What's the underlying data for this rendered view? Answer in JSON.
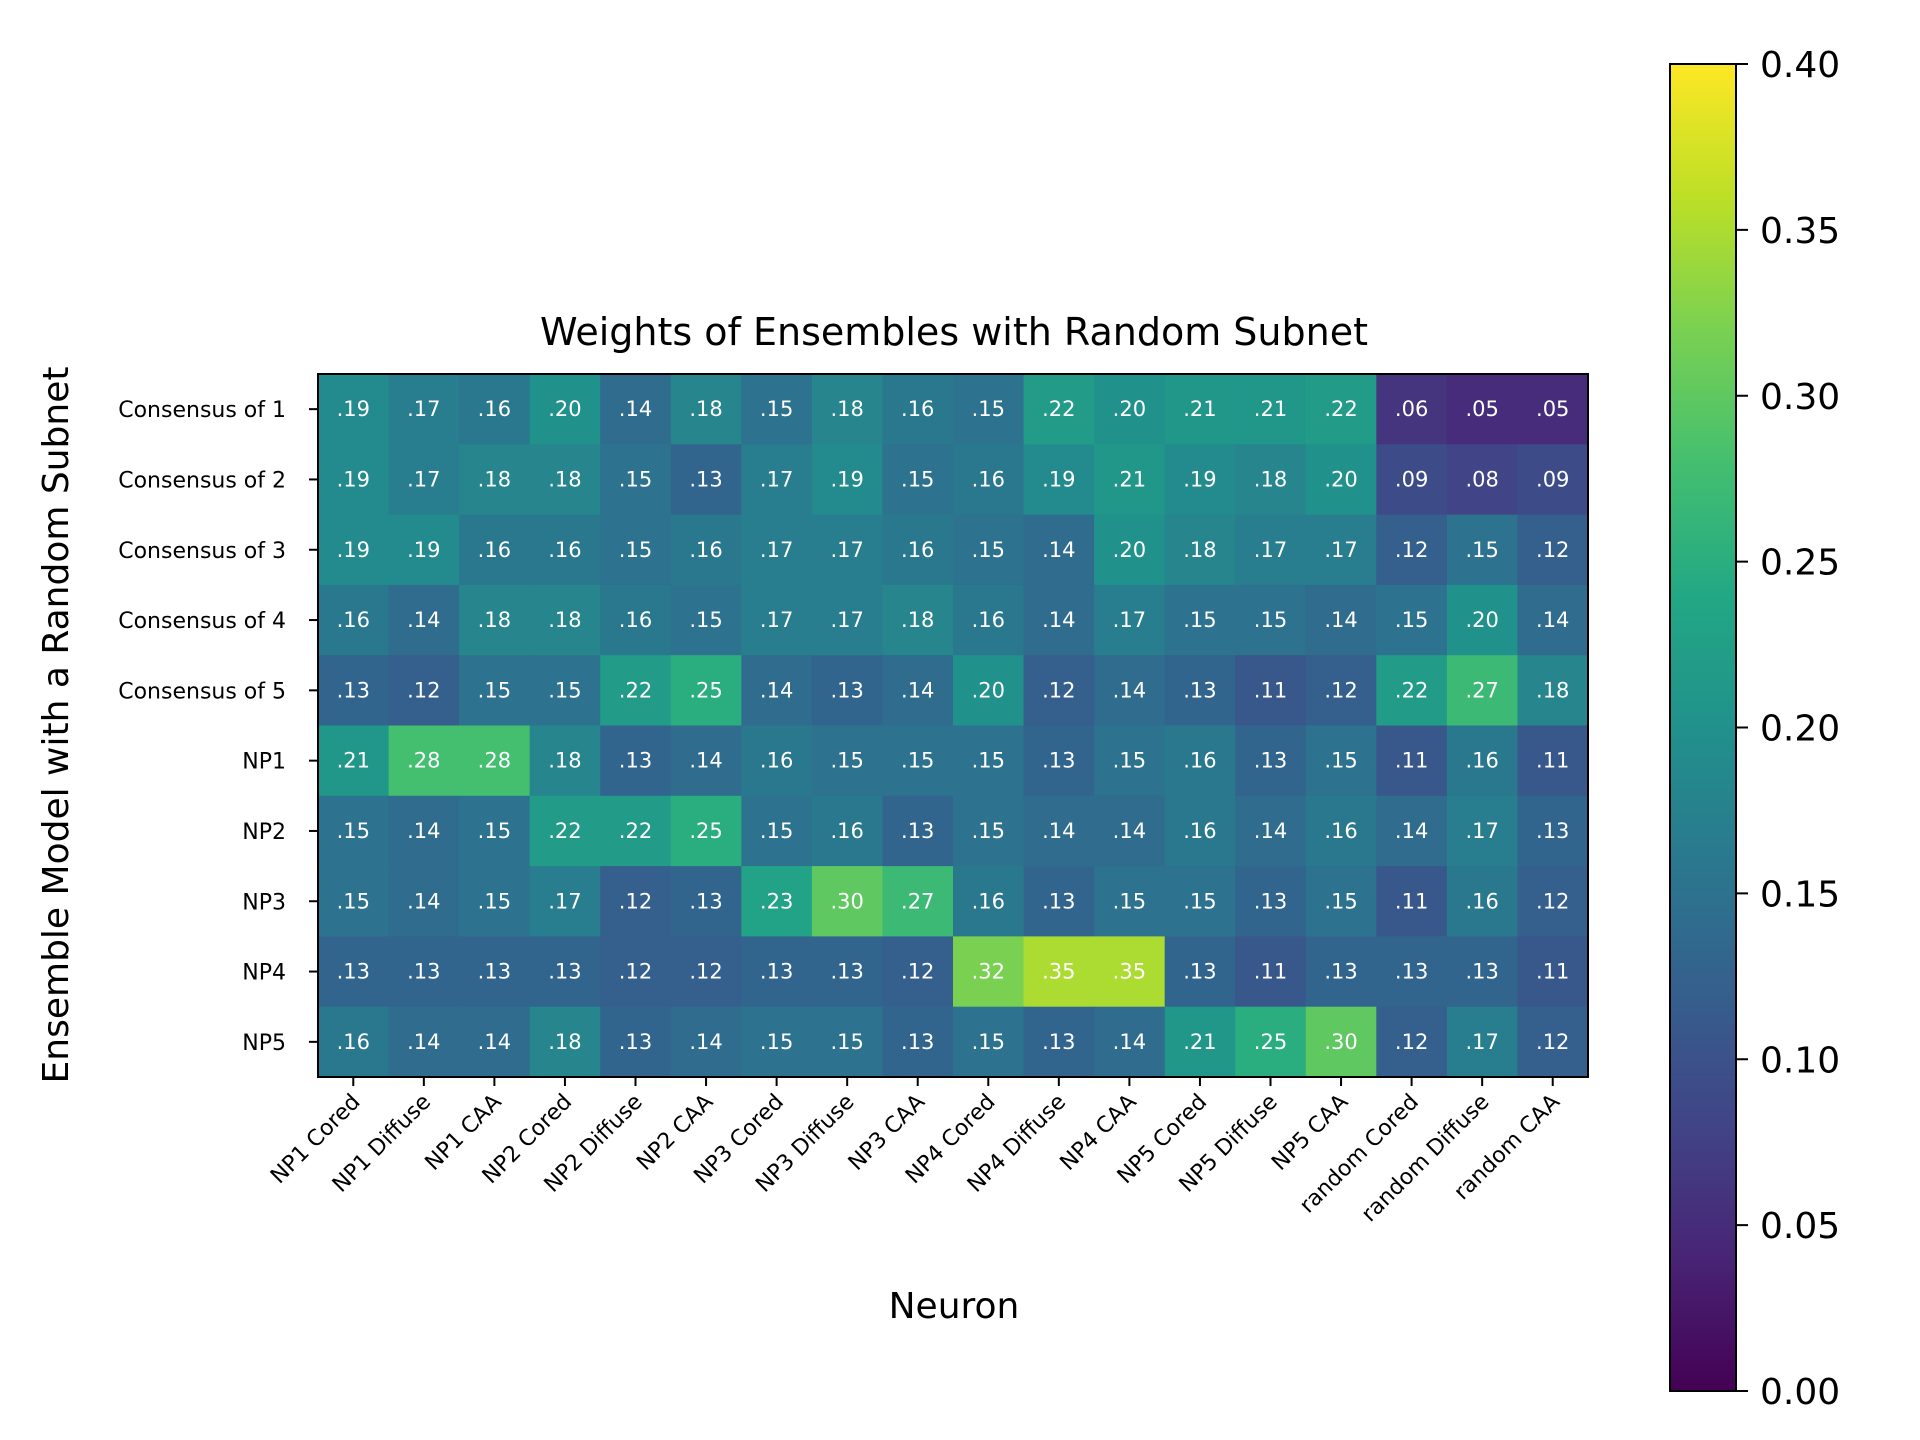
{
  "chart_data": {
    "type": "heatmap",
    "title": "Weights of Ensembles with Random Subnet",
    "xlabel": "Neuron",
    "ylabel": "Ensemble Model with a Random Subnet",
    "x_categories": [
      "NP1 Cored",
      "NP1 Diffuse",
      "NP1 CAA",
      "NP2 Cored",
      "NP2 Diffuse",
      "NP2 CAA",
      "NP3 Cored",
      "NP3 Diffuse",
      "NP3 CAA",
      "NP4 Cored",
      "NP4 Diffuse",
      "NP4 CAA",
      "NP5 Cored",
      "NP5 Diffuse",
      "NP5 CAA",
      "random Cored",
      "random Diffuse",
      "random CAA"
    ],
    "y_categories": [
      "Consensus of 1",
      "Consensus of 2",
      "Consensus of 3",
      "Consensus of 4",
      "Consensus of 5",
      "NP1",
      "NP2",
      "NP3",
      "NP4",
      "NP5"
    ],
    "values": [
      [
        0.19,
        0.17,
        0.16,
        0.2,
        0.14,
        0.18,
        0.15,
        0.18,
        0.16,
        0.15,
        0.22,
        0.2,
        0.21,
        0.21,
        0.22,
        0.06,
        0.05,
        0.05
      ],
      [
        0.19,
        0.17,
        0.18,
        0.18,
        0.15,
        0.13,
        0.17,
        0.19,
        0.15,
        0.16,
        0.19,
        0.21,
        0.19,
        0.18,
        0.2,
        0.09,
        0.08,
        0.09
      ],
      [
        0.19,
        0.19,
        0.16,
        0.16,
        0.15,
        0.16,
        0.17,
        0.17,
        0.16,
        0.15,
        0.14,
        0.2,
        0.18,
        0.17,
        0.17,
        0.12,
        0.15,
        0.12
      ],
      [
        0.16,
        0.14,
        0.18,
        0.18,
        0.16,
        0.15,
        0.17,
        0.17,
        0.18,
        0.16,
        0.14,
        0.17,
        0.15,
        0.15,
        0.14,
        0.15,
        0.2,
        0.14
      ],
      [
        0.13,
        0.12,
        0.15,
        0.15,
        0.22,
        0.25,
        0.14,
        0.13,
        0.14,
        0.2,
        0.12,
        0.14,
        0.13,
        0.11,
        0.12,
        0.22,
        0.27,
        0.18
      ],
      [
        0.21,
        0.28,
        0.28,
        0.18,
        0.13,
        0.14,
        0.16,
        0.15,
        0.15,
        0.15,
        0.13,
        0.15,
        0.16,
        0.13,
        0.15,
        0.11,
        0.16,
        0.11
      ],
      [
        0.15,
        0.14,
        0.15,
        0.22,
        0.22,
        0.25,
        0.15,
        0.16,
        0.13,
        0.15,
        0.14,
        0.14,
        0.16,
        0.14,
        0.16,
        0.14,
        0.17,
        0.13
      ],
      [
        0.15,
        0.14,
        0.15,
        0.17,
        0.12,
        0.13,
        0.23,
        0.3,
        0.27,
        0.16,
        0.13,
        0.15,
        0.15,
        0.13,
        0.15,
        0.11,
        0.16,
        0.12
      ],
      [
        0.13,
        0.13,
        0.13,
        0.13,
        0.12,
        0.12,
        0.13,
        0.13,
        0.12,
        0.32,
        0.35,
        0.35,
        0.13,
        0.11,
        0.13,
        0.13,
        0.13,
        0.11
      ],
      [
        0.16,
        0.14,
        0.14,
        0.18,
        0.13,
        0.14,
        0.15,
        0.15,
        0.13,
        0.15,
        0.13,
        0.14,
        0.21,
        0.25,
        0.3,
        0.12,
        0.17,
        0.12
      ]
    ],
    "colorbar": {
      "colormap": "viridis",
      "range": [
        0.0,
        0.4
      ],
      "ticks": [
        "0.00",
        "0.05",
        "0.10",
        "0.15",
        "0.20",
        "0.25",
        "0.30",
        "0.35",
        "0.40"
      ]
    },
    "grid": false
  }
}
